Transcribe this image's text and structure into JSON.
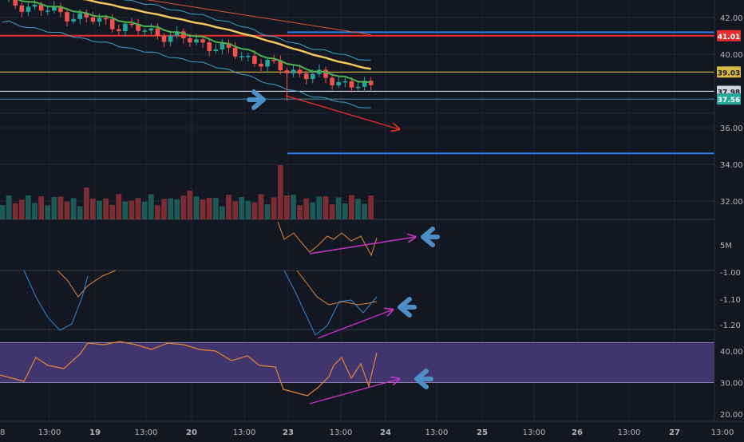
{
  "theme": {
    "background": "#131722",
    "grid": "#1f2433",
    "axis_text": "#b2b5be",
    "candle_up": "#26a69a",
    "candle_down": "#ef5350",
    "vol_up": "#1e5a55",
    "vol_down": "#7a2e33",
    "ma_fast": "#4caf50",
    "ma_slow": "#f0c75e",
    "ma_long": "#d8553a",
    "band": "#3fa3c8",
    "level_red": "#e52f2f",
    "level_blue": "#2f80ed",
    "level_yellow": "#d9b84a",
    "level_white": "#d1d4dc",
    "annot_red": "#e52f2f",
    "annot_magenta": "#c336c3",
    "annot_blue_arrow": "#4f8ec4",
    "rsi_band": "#4a3b7a",
    "osc_orange": "#e2873a",
    "osc_blue": "#2f8ad8"
  },
  "chart_data": {
    "type": "candlestick",
    "price_axis": {
      "ticks": [
        "42.00",
        "40.00",
        "36.00",
        "34.00",
        "32.00"
      ],
      "labels": [
        {
          "text": "41.01",
          "value": 41.01,
          "color": "#e52f2f"
        },
        {
          "text": "39.03",
          "value": 39.03,
          "color": "#d9b84a"
        },
        {
          "text": "37.98",
          "value": 37.98,
          "color": "#d1d4dc"
        },
        {
          "text": "37.56",
          "value": 37.56,
          "color": "#26a69a"
        }
      ]
    },
    "levels": [
      {
        "name": "red-level",
        "value": 41.01
      },
      {
        "name": "blue-level-upper",
        "value": 41.2
      },
      {
        "name": "yellow-level",
        "value": 39.03
      },
      {
        "name": "white-level",
        "value": 37.98
      },
      {
        "name": "teal-level",
        "value": 37.56
      },
      {
        "name": "blue-level-lower",
        "value": 34.6
      }
    ],
    "volume_axis": {
      "ticks": [
        "5M"
      ]
    },
    "oscillator_axis": {
      "ticks": [
        "-1.00",
        "-1.10",
        "-1.20"
      ]
    },
    "rsi_axis": {
      "ticks": [
        "40.00",
        "30.00",
        "20.00"
      ],
      "band": [
        30,
        42.7
      ]
    },
    "time_axis": [
      "13:00",
      "19",
      "13:00",
      "20",
      "13:00",
      "23",
      "13:00",
      "24",
      "13:00",
      "25",
      "13:00",
      "26",
      "13:00",
      "27",
      "13:00"
    ]
  }
}
